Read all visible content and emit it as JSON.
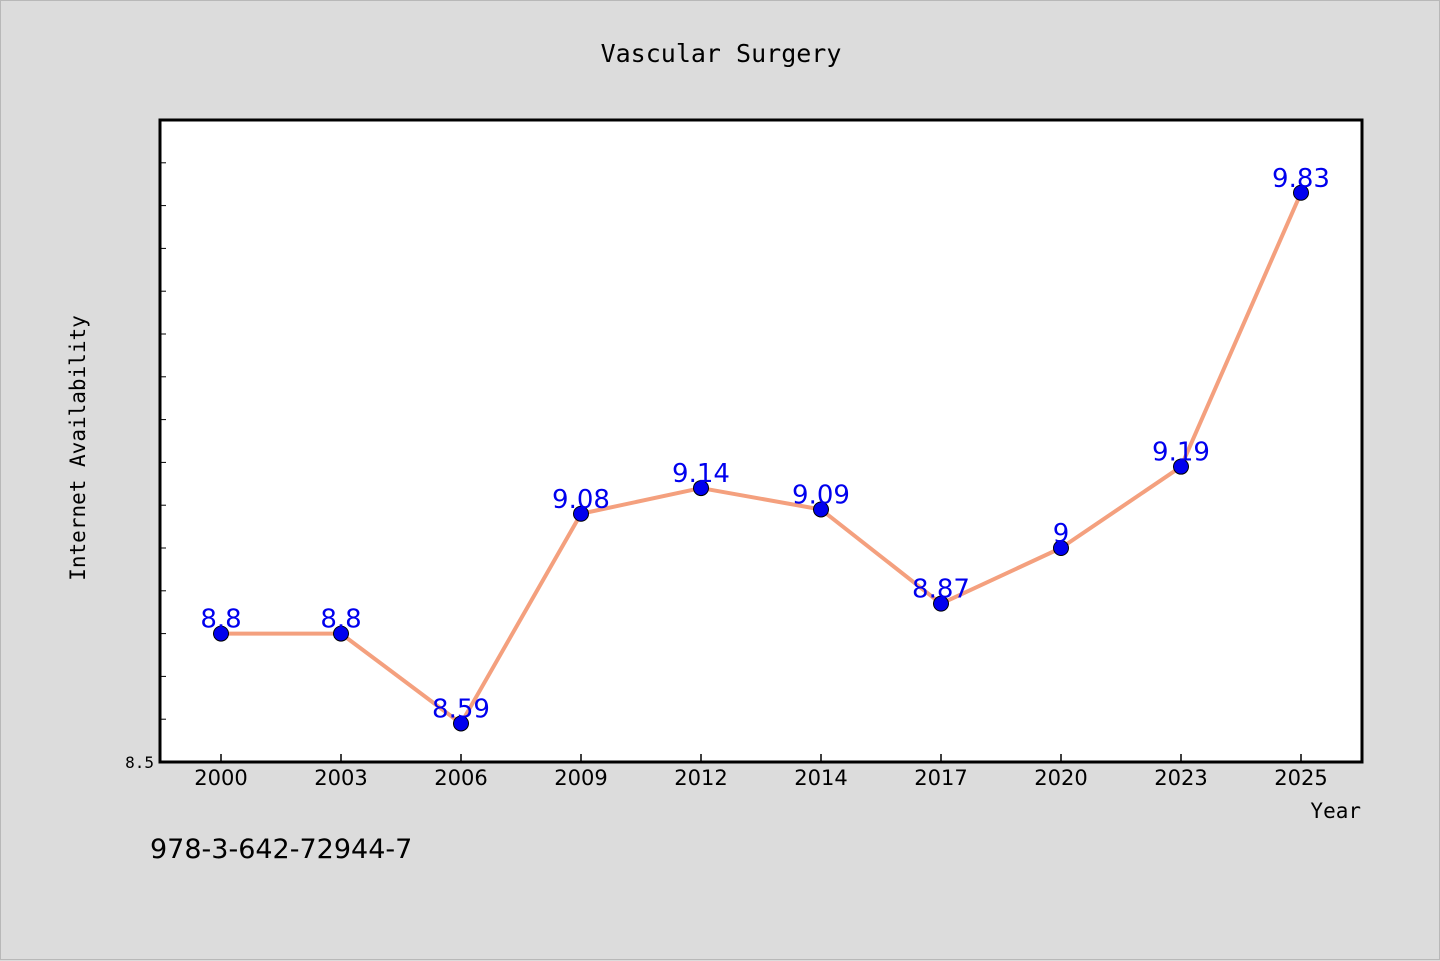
{
  "chart_data": {
    "type": "line",
    "title": "Vascular Surgery",
    "xlabel": "Year",
    "ylabel": "Internet Availability",
    "categories": [
      "2000",
      "2003",
      "2006",
      "2009",
      "2012",
      "2014",
      "2017",
      "2020",
      "2023",
      "2025"
    ],
    "series": [
      {
        "values": [
          8.8,
          8.8,
          8.59,
          9.08,
          9.14,
          9.09,
          8.87,
          9.0,
          9.19,
          9.83
        ],
        "labels": [
          "8.8",
          "8.8",
          "8.59",
          "9.08",
          "9.14",
          "9.09",
          "8.87",
          "9",
          "9.19",
          "9.83"
        ],
        "line_color": "#f4a07e",
        "marker_color": "#0000ee",
        "label_color": "#0000ee"
      }
    ],
    "ylim": [
      8.5,
      10.0
    ],
    "yticks": [
      8.5
    ],
    "ytick_labels": [
      "8.5"
    ],
    "grid": false,
    "legend": "none"
  },
  "footnote": "978-3-642-72944-7",
  "colors": {
    "background": "#dcdcdc",
    "plot_background": "#ffffff",
    "frame": "#000000"
  }
}
